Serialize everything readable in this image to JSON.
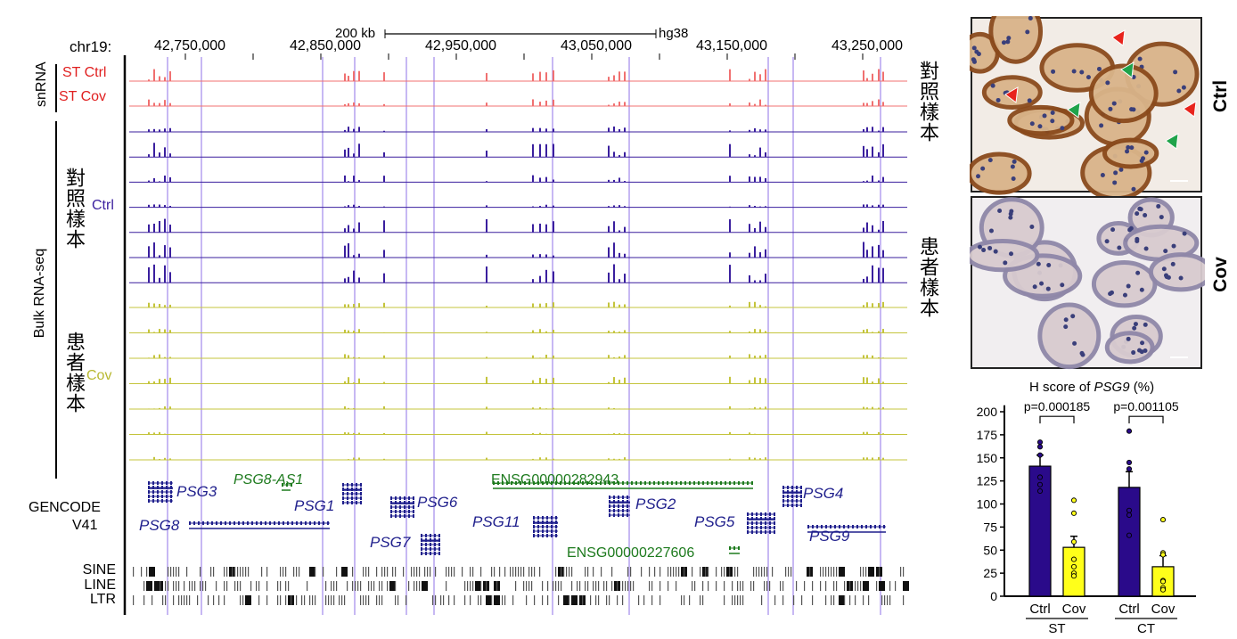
{
  "browser": {
    "chrom_label": "chr19:",
    "scale_bar": "200 kb",
    "assembly": "hg38",
    "positions": [
      "42,750,000",
      "42,850,000",
      "42,950,000",
      "43,050,000",
      "43,150,000",
      "43,250,000"
    ],
    "group_snrna": "snRNA",
    "group_bulk": "Bulk RNA-seq",
    "st_ctrl": "ST Ctrl",
    "st_cov": "ST Cov",
    "ctrl_cn": "對照樣本",
    "ctrl": "Ctrl",
    "cov_cn": "患者樣本",
    "cov": "Cov",
    "gencode": "GENCODE",
    "gencode_ver": "V41",
    "repeats": [
      "SINE",
      "LINE",
      "LTR"
    ],
    "colors": {
      "snrna": "#f07070",
      "ctrl": "#3a1f9e",
      "cov": "#c4c43c",
      "highlight": "#b9a6f0",
      "gene_blue": "#1f1f8c",
      "gene_green": "#1d7a1d"
    },
    "genes": [
      {
        "name": "PSG3",
        "color": "blue"
      },
      {
        "name": "PSG8-AS1",
        "color": "green"
      },
      {
        "name": "PSG8",
        "color": "blue"
      },
      {
        "name": "PSG1",
        "color": "blue"
      },
      {
        "name": "PSG6",
        "color": "blue"
      },
      {
        "name": "PSG7",
        "color": "blue"
      },
      {
        "name": "ENSG00000282943",
        "color": "green"
      },
      {
        "name": "PSG11",
        "color": "blue"
      },
      {
        "name": "PSG2",
        "color": "blue"
      },
      {
        "name": "ENSG00000227606",
        "color": "green"
      },
      {
        "name": "PSG5",
        "color": "blue"
      },
      {
        "name": "PSG4",
        "color": "blue"
      },
      {
        "name": "PSG9",
        "color": "blue"
      }
    ]
  },
  "ihc": {
    "ctrl_label": "Ctrl",
    "ctrl_cn": "對照樣本",
    "cov_label": "Cov",
    "cov_cn": "患者樣本",
    "arrow_colors": {
      "red": "#e8231c",
      "green": "#1fa34a"
    }
  },
  "chart_data": {
    "type": "bar",
    "title_prefix": "H score of ",
    "title_gene": "PSG9",
    "title_suffix": " (%)",
    "ylim": [
      0,
      200
    ],
    "yticks": [
      0,
      25,
      50,
      75,
      100,
      125,
      150,
      175,
      200
    ],
    "groups": [
      {
        "name": "ST",
        "p_value": "p=0.000185",
        "bars": [
          {
            "label": "Ctrl",
            "mean": 141,
            "sem_top": 153,
            "color": "#2a0a8a",
            "points": [
              167,
              162,
              153,
              129,
              121,
              114
            ]
          },
          {
            "label": "Cov",
            "mean": 53,
            "sem_top": 65,
            "color": "#ffff1a",
            "points": [
              104,
              90,
              59,
              40,
              32,
              25,
              22
            ]
          }
        ]
      },
      {
        "name": "CT",
        "p_value": "p=0.001105",
        "bars": [
          {
            "label": "Ctrl",
            "mean": 118,
            "sem_top": 135,
            "color": "#2a0a8a",
            "points": [
              179,
              145,
              138,
              93,
              88,
              66
            ]
          },
          {
            "label": "Cov",
            "mean": 32,
            "sem_top": 44,
            "color": "#ffff1a",
            "points": [
              83,
              47,
              45,
              17,
              16,
              9,
              7
            ]
          }
        ]
      }
    ]
  }
}
